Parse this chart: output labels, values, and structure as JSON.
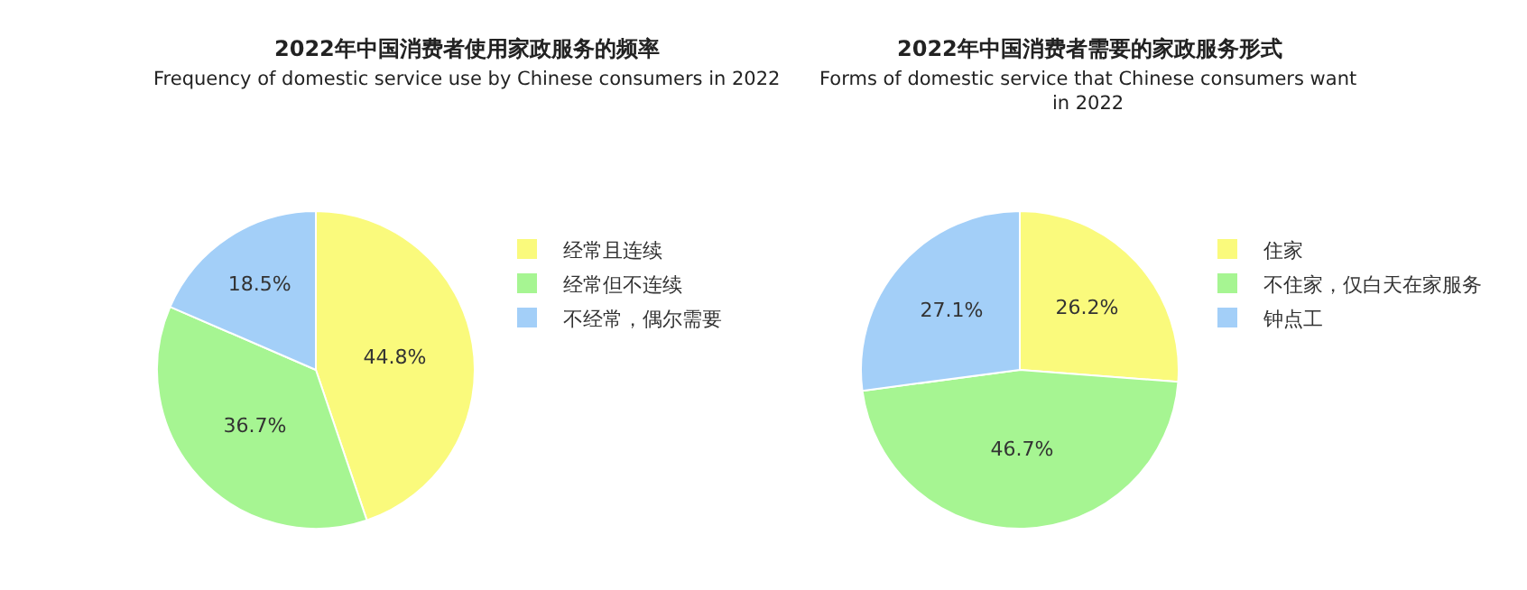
{
  "chart_data": [
    {
      "type": "pie",
      "title": "2022年中国消费者使用家政服务的频率",
      "subtitle": "Frequency of domestic service use by Chinese consumers in 2022",
      "categories": [
        "经常且连续",
        "经常但不连续",
        "不经常，偶尔需要"
      ],
      "values": [
        44.8,
        36.7,
        18.5
      ],
      "value_labels": [
        "44.8%",
        "36.7%",
        "18.5%"
      ],
      "colors": [
        "#fafa7c",
        "#a6f592",
        "#a3cff8"
      ],
      "legend": "right"
    },
    {
      "type": "pie",
      "title": "2022年中国消费者需要的家政服务形式",
      "subtitle": "Forms of domestic service that Chinese consumers want in 2022",
      "categories": [
        "住家",
        "不住家，仅白天在家服务",
        "钟点工"
      ],
      "values": [
        26.2,
        46.7,
        27.1
      ],
      "value_labels": [
        "26.2%",
        "46.7%",
        "27.1%"
      ],
      "colors": [
        "#fafa7c",
        "#a6f592",
        "#a3cff8"
      ],
      "legend": "right"
    }
  ]
}
